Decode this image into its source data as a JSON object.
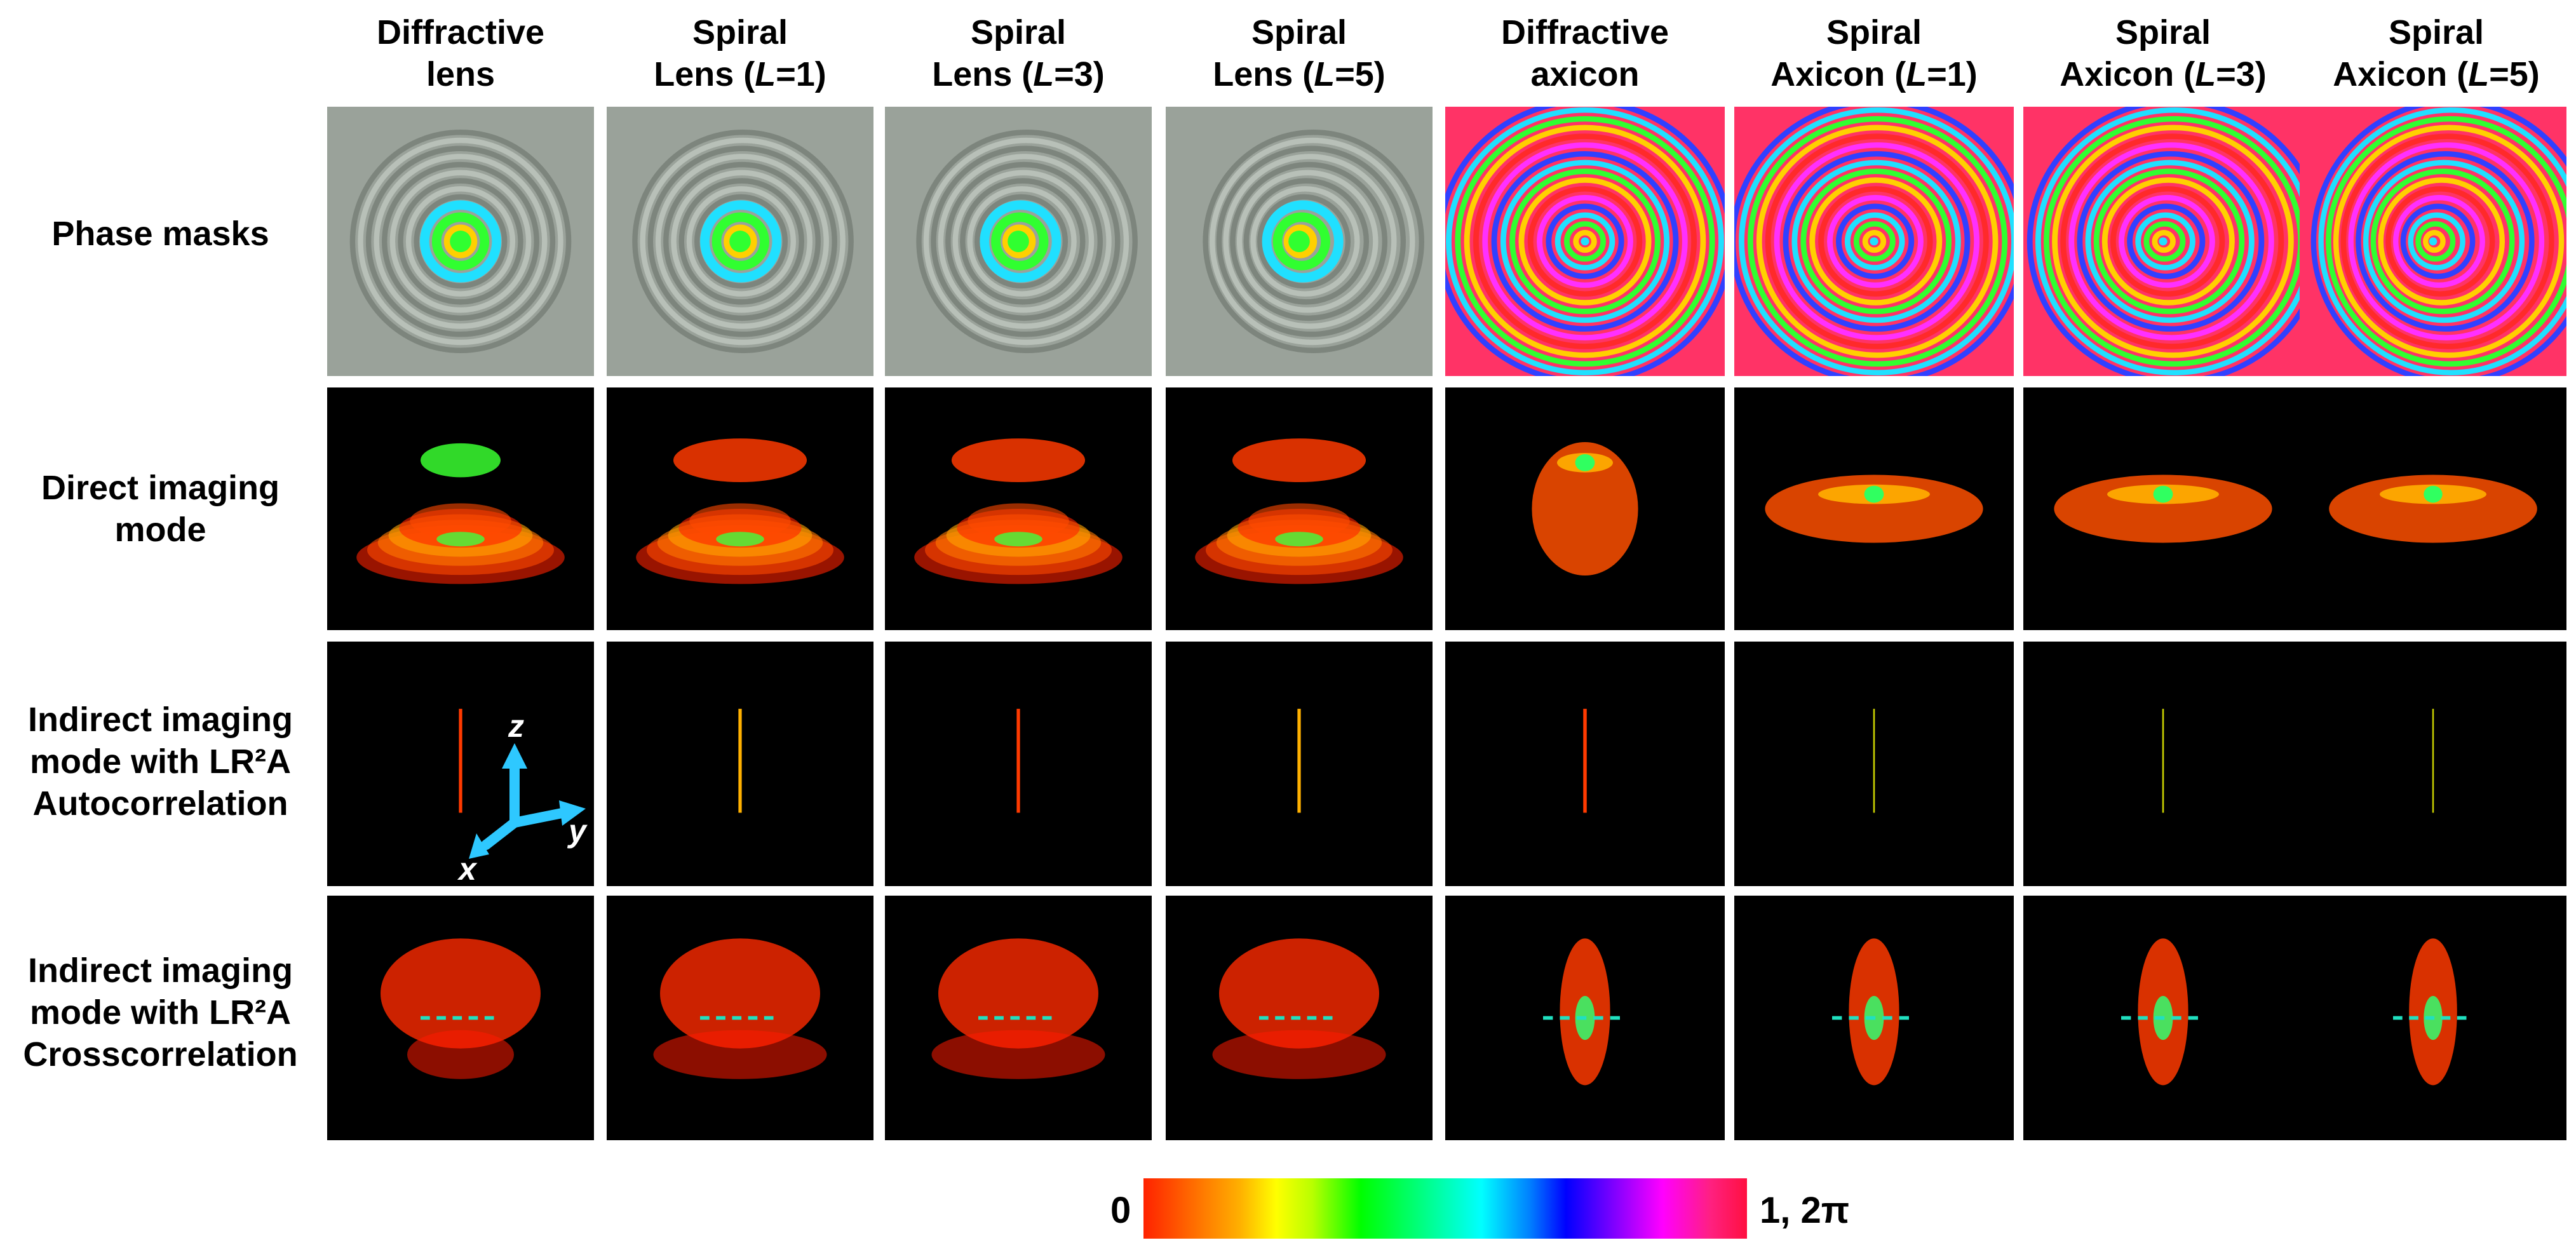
{
  "columns": [
    {
      "line1": "Diffractive",
      "line2_a": "lens",
      "line2_i": "",
      "line2_b": ""
    },
    {
      "line1": "Spiral",
      "line2_a": "Lens (",
      "line2_i": "L",
      "line2_b": "=1)"
    },
    {
      "line1": "Spiral",
      "line2_a": "Lens (",
      "line2_i": "L",
      "line2_b": "=3)"
    },
    {
      "line1": "Spiral",
      "line2_a": "Lens (",
      "line2_i": "L",
      "line2_b": "=5)"
    },
    {
      "line1": "Diffractive",
      "line2_a": "axicon",
      "line2_i": "",
      "line2_b": ""
    },
    {
      "line1": "Spiral",
      "line2_a": "Axicon (",
      "line2_i": "L",
      "line2_b": "=1)"
    },
    {
      "line1": "Spiral",
      "line2_a": "Axicon (",
      "line2_i": "L",
      "line2_b": "=3)"
    },
    {
      "line1": "Spiral",
      "line2_a": "Axicon (",
      "line2_i": "L",
      "line2_b": "=5)"
    }
  ],
  "rows": [
    {
      "lines": [
        "Phase masks"
      ]
    },
    {
      "lines": [
        "Direct imaging",
        "mode"
      ]
    },
    {
      "lines": [
        "Indirect imaging",
        "mode with LR²A",
        "Autocorrelation"
      ]
    },
    {
      "lines": [
        "Indirect imaging",
        "mode with LR²A",
        "Crosscorrelation"
      ]
    }
  ],
  "axes": {
    "z": "z",
    "y": "y",
    "x": "x",
    "color": "#2ec8ff"
  },
  "colorbar": {
    "min_label": "0",
    "max_label": "1, 2π"
  },
  "colors": {
    "dashed_line": "#20e0c0",
    "background_tile": "#000000",
    "hot_red": "#ff2200"
  }
}
